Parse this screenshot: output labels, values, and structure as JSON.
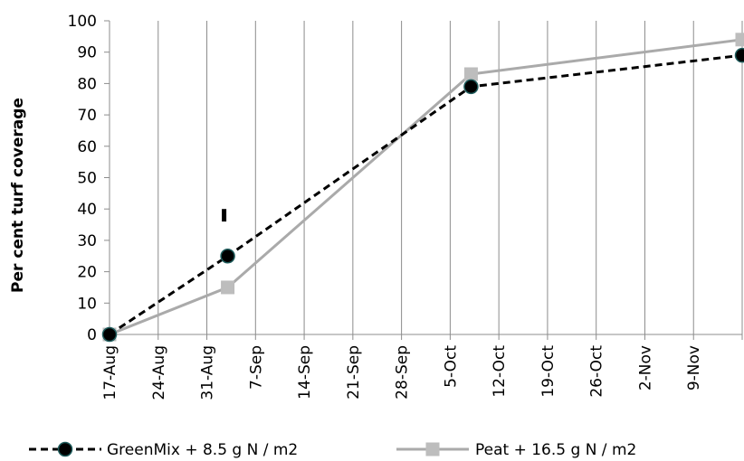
{
  "chart_data": {
    "type": "line",
    "title": "",
    "xlabel": "",
    "ylabel": "Per cent turf coverage",
    "x_tick_labels": [
      "17-Aug",
      "24-Aug",
      "31-Aug",
      "7-Sep",
      "14-Sep",
      "21-Sep",
      "28-Sep",
      "5-Oct",
      "12-Oct",
      "19-Oct",
      "26-Oct",
      "2-Nov",
      "9-Nov"
    ],
    "x_tick_dates": [
      "2000-08-17",
      "2000-08-24",
      "2000-08-31",
      "2000-09-07",
      "2000-09-14",
      "2000-09-21",
      "2000-09-28",
      "2000-10-05",
      "2000-10-12",
      "2000-10-19",
      "2000-10-26",
      "2000-11-02",
      "2000-11-09"
    ],
    "xlim": [
      "2000-08-17",
      "2000-11-16"
    ],
    "ylim": [
      0,
      100
    ],
    "y_ticks": [
      0,
      10,
      20,
      30,
      40,
      50,
      60,
      70,
      80,
      90,
      100
    ],
    "grid": "vertical",
    "legend_position": "bottom",
    "series": [
      {
        "name": "GreenMix + 8.5 g N / m2",
        "color": "#000000",
        "line_style": "dashed",
        "marker": "circle",
        "x": [
          "2000-08-17",
          "2000-09-03",
          "2000-10-08",
          "2000-11-16"
        ],
        "values": [
          0,
          25,
          79,
          89
        ]
      },
      {
        "name": "Peat + 16.5 g N / m2",
        "color": "#aaaaaa",
        "line_style": "solid",
        "marker": "square",
        "x": [
          "2000-08-17",
          "2000-09-03",
          "2000-10-08",
          "2000-11-16"
        ],
        "values": [
          0,
          15,
          83,
          94
        ]
      }
    ],
    "error_bar": {
      "x": "2000-09-03",
      "low": 36,
      "high": 40
    }
  }
}
